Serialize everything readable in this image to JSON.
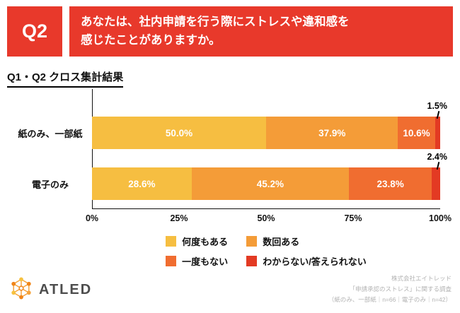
{
  "theme": {
    "red": "#E8392B",
    "axis_color": "#111111"
  },
  "header": {
    "q_label": "Q2",
    "question_line1": "あなたは、社内申請を行う際にストレスや違和感を",
    "question_line2": "感じたことがありますか。"
  },
  "section_title": "Q1・Q2 クロス集計結果",
  "chart_data": {
    "type": "bar",
    "stacked": true,
    "orientation": "horizontal",
    "unit": "%",
    "categories": [
      "紙のみ、一部紙",
      "電子のみ"
    ],
    "series": [
      {
        "name": "何度もある",
        "color": "#F6BE41",
        "values": [
          50.0,
          28.6
        ]
      },
      {
        "name": "数回ある",
        "color": "#F49C38",
        "values": [
          37.9,
          45.2
        ]
      },
      {
        "name": "一度もない",
        "color": "#F06D30",
        "values": [
          10.6,
          23.8
        ]
      },
      {
        "name": "わからない/答えられない",
        "color": "#E33A23",
        "values": [
          1.5,
          2.4
        ]
      }
    ],
    "x_ticks": [
      "0%",
      "25%",
      "50%",
      "75%",
      "100%"
    ],
    "xlim": [
      0,
      100
    ],
    "grid": false,
    "legend_position": "bottom",
    "small_segment_callouts": [
      "1.5%",
      "2.4%"
    ]
  },
  "footer": {
    "brand": "ATLED",
    "credit_lines": [
      "株式会社エイトレッド",
      "「申請承認のストレス」に関する調査",
      "（紙のみ、一部紙｜n=66｜電子のみ｜n=42）"
    ]
  }
}
